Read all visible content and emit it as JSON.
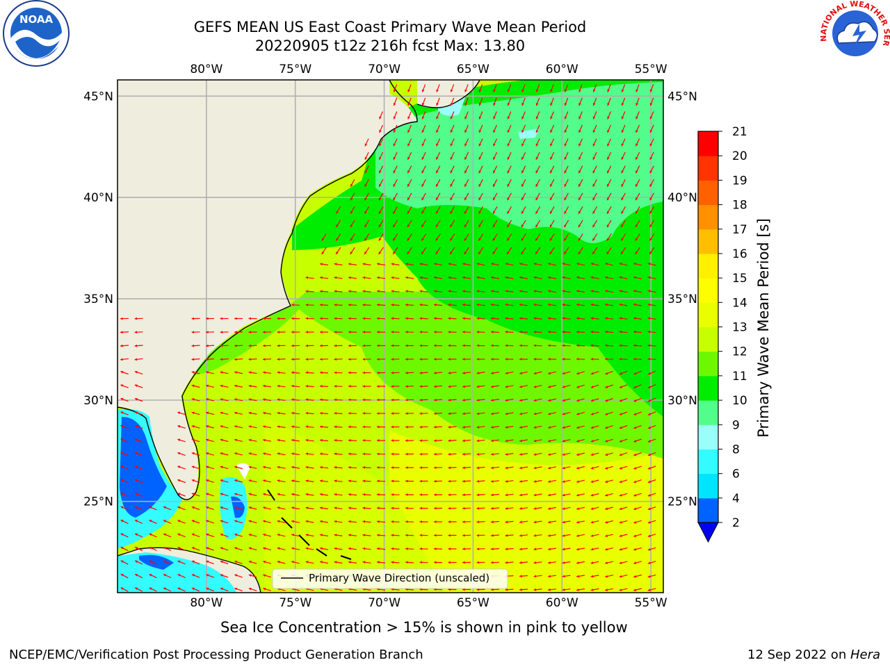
{
  "title_line1": "GEFS MEAN US East Coast Primary Wave Mean Period",
  "title_line2": "20220905 t12z 216h fcst   Max: 13.80",
  "caption": "Sea Ice Concentration > 15% is shown in pink to yellow",
  "footer_left": "NCEP/EMC/Verification Post Processing Product Generation Branch",
  "footer_right_date": "12 Sep 2022 on ",
  "footer_right_host": "Hera",
  "logos": {
    "left": "NOAA",
    "right": "NATIONAL WEATHER SERVICE"
  },
  "map": {
    "lon_range": [
      -85,
      -54.3
    ],
    "lat_range": [
      20.5,
      45.8
    ],
    "lon_ticks": [
      "80°W",
      "75°W",
      "70°W",
      "65°W",
      "60°W",
      "55°W"
    ],
    "lon_tick_values": [
      -80,
      -75,
      -70,
      -65,
      -60,
      -55
    ],
    "lat_ticks": [
      "45°N",
      "40°N",
      "35°N",
      "30°N",
      "25°N"
    ],
    "lat_tick_values": [
      45,
      40,
      35,
      30,
      25
    ],
    "grid": true,
    "legend_label": "Primary Wave Direction (unscaled)",
    "legend_position": "bottom-center"
  },
  "colorbar": {
    "label": "Primary Wave Mean Period [s]",
    "ticks": [
      "2",
      "4",
      "6",
      "8",
      "9",
      "10",
      "11",
      "12",
      "13",
      "14",
      "15",
      "16",
      "17",
      "18",
      "19",
      "20",
      "21"
    ],
    "colors": [
      "#0062ff",
      "#00e4ff",
      "#33fbff",
      "#9afff9",
      "#52fd8c",
      "#00ec00",
      "#6ef800",
      "#c8ff00",
      "#e9ff00",
      "#fdff00",
      "#fff000",
      "#ffbe00",
      "#ff9000",
      "#ff6000",
      "#ff3400",
      "#ff0000"
    ],
    "extend": "min",
    "under_color": "#0000ee"
  },
  "colors": {
    "land": "#efedde",
    "arrow": "#ff0000",
    "grid": "#b0b0b0",
    "coast": "#000000"
  }
}
